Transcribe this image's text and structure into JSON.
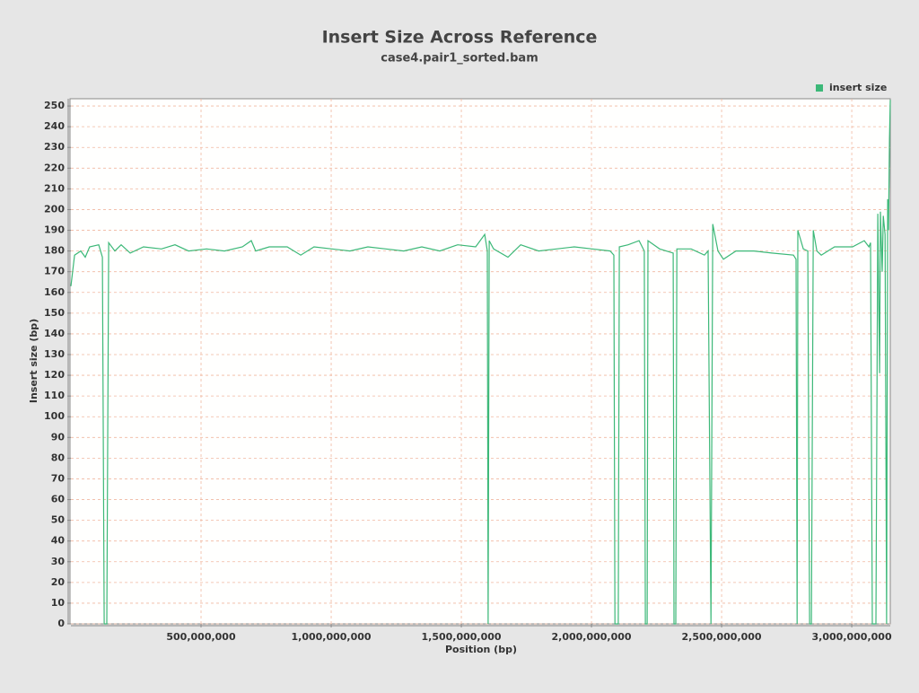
{
  "chart_data": {
    "type": "line",
    "title": "Insert Size Across Reference",
    "subtitle": "case4.pair1_sorted.bam",
    "x_label": "Position (bp)",
    "y_label": "Insert size (bp)",
    "legend_position": "top-right",
    "grid": true,
    "xlim": [
      0,
      3148000000
    ],
    "ylim": [
      0,
      253.5
    ],
    "xticks": [
      {
        "value": 500000000,
        "label": "500,000,000"
      },
      {
        "value": 1000000000,
        "label": "1,000,000,000"
      },
      {
        "value": 1500000000,
        "label": "1,500,000,000"
      },
      {
        "value": 2000000000,
        "label": "2,000,000,000"
      },
      {
        "value": 2500000000,
        "label": "2,500,000,000"
      },
      {
        "value": 3000000000,
        "label": "3,000,000,000"
      }
    ],
    "yticks": [
      0,
      10,
      20,
      30,
      40,
      50,
      60,
      70,
      80,
      90,
      100,
      110,
      120,
      130,
      140,
      150,
      160,
      170,
      180,
      190,
      200,
      210,
      220,
      230,
      240,
      250
    ],
    "series": [
      {
        "name": "insert size",
        "color": "#3cb878",
        "x": [
          0,
          14000000,
          38000000,
          55000000,
          72000000,
          107000000,
          121000000,
          128000000,
          138000000,
          145000000,
          169000000,
          193000000,
          228000000,
          279000000,
          348000000,
          400000000,
          452000000,
          521000000,
          590000000,
          659000000,
          693000000,
          710000000,
          762000000,
          831000000,
          883000000,
          934000000,
          1003000000,
          1072000000,
          1141000000,
          1210000000,
          1279000000,
          1348000000,
          1417000000,
          1486000000,
          1555000000,
          1590000000,
          1600000000,
          1603000000,
          1607000000,
          1624000000,
          1679000000,
          1728000000,
          1797000000,
          1866000000,
          1934000000,
          2003000000,
          2072000000,
          2086000000,
          2090000000,
          2103000000,
          2107000000,
          2141000000,
          2183000000,
          2203000000,
          2207000000,
          2214000000,
          2217000000,
          2262000000,
          2314000000,
          2317000000,
          2324000000,
          2328000000,
          2383000000,
          2434000000,
          2448000000,
          2459000000,
          2466000000,
          2486000000,
          2507000000,
          2555000000,
          2624000000,
          2693000000,
          2776000000,
          2786000000,
          2790000000,
          2793000000,
          2814000000,
          2831000000,
          2838000000,
          2845000000,
          2852000000,
          2866000000,
          2883000000,
          2934000000,
          3003000000,
          3048000000,
          3066000000,
          3072000000,
          3079000000,
          3093000000,
          3100000000,
          3107000000,
          3110000000,
          3117000000,
          3121000000,
          3128000000,
          3134000000,
          3138000000,
          3141000000,
          3145000000,
          3148000000
        ],
        "values": [
          163,
          178,
          180,
          177,
          182,
          183,
          177,
          0,
          0,
          184,
          180,
          183,
          179,
          182,
          181,
          183,
          180,
          181,
          180,
          182,
          185,
          180,
          182,
          182,
          178,
          182,
          181,
          180,
          182,
          181,
          180,
          182,
          180,
          183,
          182,
          188,
          180,
          0,
          185,
          181,
          177,
          183,
          180,
          181,
          182,
          181,
          180,
          178,
          0,
          0,
          182,
          183,
          185,
          180,
          0,
          0,
          185,
          181,
          179,
          0,
          0,
          181,
          181,
          178,
          180,
          0,
          193,
          180,
          176,
          180,
          180,
          179,
          178,
          176,
          0,
          190,
          181,
          180,
          0,
          0,
          190,
          180,
          178,
          182,
          182,
          185,
          182,
          184,
          0,
          0,
          198,
          121,
          199,
          170,
          197,
          188,
          0,
          205,
          190,
          234,
          253
        ]
      }
    ]
  }
}
